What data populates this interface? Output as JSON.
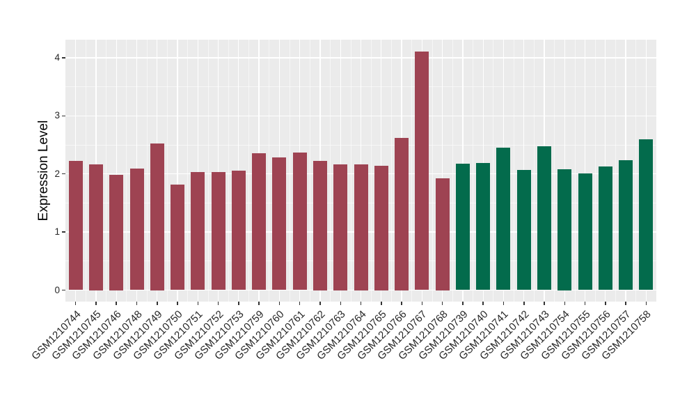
{
  "style": {
    "figure_bg": "#FFFFFF",
    "panel_bg": "#EBEBEB",
    "grid_color": "#FFFFFF",
    "tick_mark_color": "#333333",
    "tick_label_color": "#262626",
    "axis_title_color": "#000000",
    "bar_color_group1": "#9E4352",
    "bar_color_group2": "#036B4C"
  },
  "chart_data": {
    "type": "bar",
    "title": "",
    "xlabel": "",
    "ylabel": "Expression Level",
    "ylim": [
      -0.2,
      4.32
    ],
    "yticks": [
      0,
      1,
      2,
      3,
      4
    ],
    "grid": "major and minor, white on gray panel",
    "legend_position": "none",
    "groups": [
      {
        "name": "left-group-maroon",
        "color": "#9E4352"
      },
      {
        "name": "right-group-green",
        "color": "#036B4C"
      }
    ],
    "bars": [
      {
        "label": "GSM1210744",
        "value": 2.22,
        "group": 0
      },
      {
        "label": "GSM1210745",
        "value": 2.17,
        "group": 0
      },
      {
        "label": "GSM1210746",
        "value": 1.99,
        "group": 0
      },
      {
        "label": "GSM1210748",
        "value": 2.09,
        "group": 0
      },
      {
        "label": "GSM1210749",
        "value": 2.53,
        "group": 0
      },
      {
        "label": "GSM1210750",
        "value": 1.82,
        "group": 0
      },
      {
        "label": "GSM1210751",
        "value": 2.03,
        "group": 0
      },
      {
        "label": "GSM1210752",
        "value": 2.03,
        "group": 0
      },
      {
        "label": "GSM1210753",
        "value": 2.06,
        "group": 0
      },
      {
        "label": "GSM1210759",
        "value": 2.36,
        "group": 0
      },
      {
        "label": "GSM1210760",
        "value": 2.28,
        "group": 0
      },
      {
        "label": "GSM1210761",
        "value": 2.37,
        "group": 0
      },
      {
        "label": "GSM1210762",
        "value": 2.23,
        "group": 0
      },
      {
        "label": "GSM1210763",
        "value": 2.17,
        "group": 0
      },
      {
        "label": "GSM1210764",
        "value": 2.17,
        "group": 0
      },
      {
        "label": "GSM1210765",
        "value": 2.14,
        "group": 0
      },
      {
        "label": "GSM1210766",
        "value": 2.62,
        "group": 0
      },
      {
        "label": "GSM1210767",
        "value": 4.11,
        "group": 0
      },
      {
        "label": "GSM1210768",
        "value": 1.93,
        "group": 0
      },
      {
        "label": "GSM1210739",
        "value": 2.18,
        "group": 1
      },
      {
        "label": "GSM1210740",
        "value": 2.19,
        "group": 1
      },
      {
        "label": "GSM1210741",
        "value": 2.45,
        "group": 1
      },
      {
        "label": "GSM1210742",
        "value": 2.07,
        "group": 1
      },
      {
        "label": "GSM1210743",
        "value": 2.48,
        "group": 1
      },
      {
        "label": "GSM1210754",
        "value": 2.08,
        "group": 1
      },
      {
        "label": "GSM1210755",
        "value": 2.01,
        "group": 1
      },
      {
        "label": "GSM1210756",
        "value": 2.13,
        "group": 1
      },
      {
        "label": "GSM1210757",
        "value": 2.24,
        "group": 1
      },
      {
        "label": "GSM1210758",
        "value": 2.6,
        "group": 1
      }
    ]
  }
}
